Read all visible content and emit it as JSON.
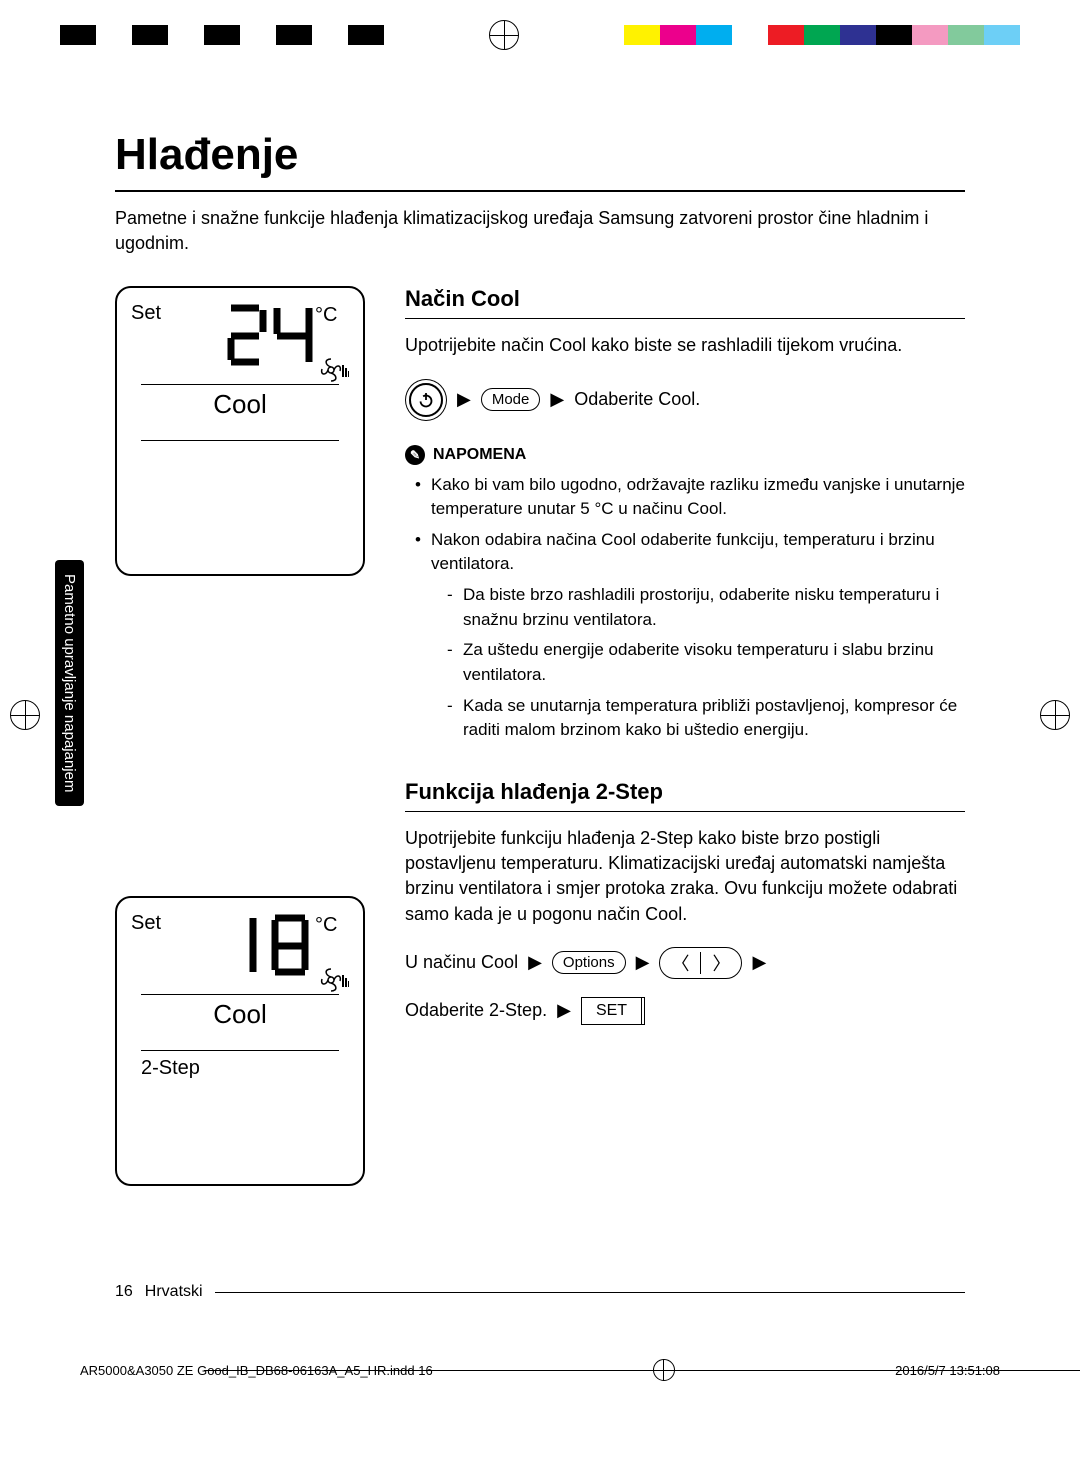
{
  "print_bars_left": [
    "#000000",
    "#ffffff",
    "#000000",
    "#ffffff",
    "#000000",
    "#ffffff",
    "#000000",
    "#ffffff",
    "#000000"
  ],
  "print_bars_right": [
    "#fff200",
    "#ec008c",
    "#00aeef",
    "#ffffff",
    "#ed1c24",
    "#00a651",
    "#2e3192",
    "#000000",
    "#f49ac1",
    "#82ca9c",
    "#6dcff6"
  ],
  "title": "Hlađenje",
  "intro": "Pametne i snažne funkcije hlađenja klimatizacijskog uređaja Samsung zatvoreni prostor čine hladnim i ugodnim.",
  "side_tab": "Pametno upravljanje napajanjem",
  "remote1": {
    "set": "Set",
    "temp": "24",
    "unit": "°C",
    "mode": "Cool"
  },
  "remote2": {
    "set": "Set",
    "temp": "18",
    "unit": "°C",
    "mode": "Cool",
    "func": "2-Step"
  },
  "section1": {
    "heading": "Način Cool",
    "body": "Upotrijebite način Cool kako biste se rashladili tijekom vrućina.",
    "mode_label": "Mode",
    "action": "Odaberite Cool.",
    "note_label": "NAPOMENA",
    "notes": [
      "Kako bi vam bilo ugodno, održavajte razliku između vanjske i unutarnje temperature unutar 5 °C u načinu Cool.",
      "Nakon odabira načina Cool odaberite funkciju, temperaturu i brzinu ventilatora."
    ],
    "subnotes": [
      "Da biste brzo rashladili prostoriju, odaberite nisku temperaturu i snažnu brzinu ventilatora.",
      "Za uštedu energije odaberite visoku temperaturu i slabu brzinu ventilatora.",
      "Kada se unutarnja temperatura približi postavljenoj, kompresor će raditi malom brzinom kako bi uštedio energiju."
    ]
  },
  "section2": {
    "heading": "Funkcija hlađenja 2-Step",
    "body": "Upotrijebite funkciju hlađenja 2-Step kako biste brzo postigli postavljenu temperaturu. Klimatizacijski uređaj automatski namješta brzinu ventilatora i smjer protoka zraka. Ovu funkciju možete odabrati samo kada je u pogonu način Cool.",
    "in_mode": "U načinu Cool",
    "options_label": "Options",
    "select_label": "Odaberite 2-Step.",
    "set_label": "SET"
  },
  "footer": {
    "page": "16",
    "lang": "Hrvatski"
  },
  "slug": {
    "file": "AR5000&A3050 ZE Good_IB_DB68-06163A_A5_HR.indd   16",
    "stamp": "2016/5/7   13:51:08"
  }
}
